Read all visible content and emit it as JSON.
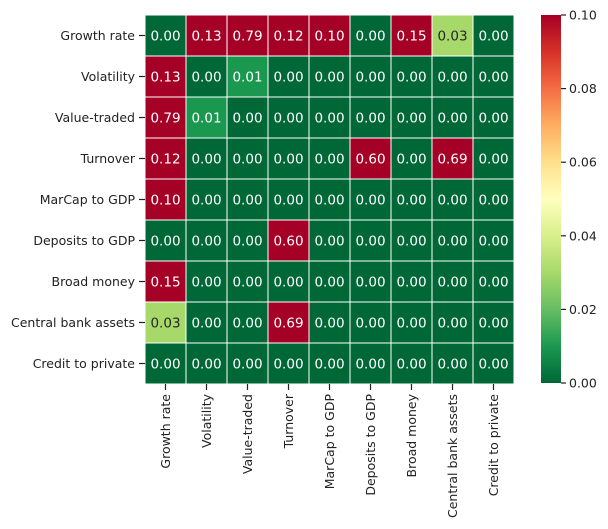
{
  "chart_data": {
    "type": "heatmap",
    "title": "",
    "xlabel": "",
    "ylabel": "",
    "rows": [
      "Growth rate",
      "Volatility",
      "Value-traded",
      "Turnover",
      "MarCap to GDP",
      "Deposits to GDP",
      "Broad money",
      "Central bank assets",
      "Credit to private"
    ],
    "columns": [
      "Growth rate",
      "Volatility",
      "Value-traded",
      "Turnover",
      "MarCap to GDP",
      "Deposits to GDP",
      "Broad money",
      "Central bank assets",
      "Credit to private"
    ],
    "values": [
      [
        0.0,
        0.13,
        0.79,
        0.12,
        0.1,
        0.0,
        0.15,
        0.03,
        0.0
      ],
      [
        0.13,
        0.0,
        0.01,
        0.0,
        0.0,
        0.0,
        0.0,
        0.0,
        0.0
      ],
      [
        0.79,
        0.01,
        0.0,
        0.0,
        0.0,
        0.0,
        0.0,
        0.0,
        0.0
      ],
      [
        0.12,
        0.0,
        0.0,
        0.0,
        0.0,
        0.6,
        0.0,
        0.69,
        0.0
      ],
      [
        0.1,
        0.0,
        0.0,
        0.0,
        0.0,
        0.0,
        0.0,
        0.0,
        0.0
      ],
      [
        0.0,
        0.0,
        0.0,
        0.6,
        0.0,
        0.0,
        0.0,
        0.0,
        0.0
      ],
      [
        0.15,
        0.0,
        0.0,
        0.0,
        0.0,
        0.0,
        0.0,
        0.0,
        0.0
      ],
      [
        0.03,
        0.0,
        0.0,
        0.69,
        0.0,
        0.0,
        0.0,
        0.0,
        0.0
      ],
      [
        0.0,
        0.0,
        0.0,
        0.0,
        0.0,
        0.0,
        0.0,
        0.0,
        0.0
      ]
    ],
    "value_labels": [
      [
        "0.00",
        "0.13",
        "0.79",
        "0.12",
        "0.10",
        "0.00",
        "0.15",
        "0.03",
        "0.00"
      ],
      [
        "0.13",
        "0.00",
        "0.01",
        "0.00",
        "0.00",
        "0.00",
        "0.00",
        "0.00",
        "0.00"
      ],
      [
        "0.79",
        "0.01",
        "0.00",
        "0.00",
        "0.00",
        "0.00",
        "0.00",
        "0.00",
        "0.00"
      ],
      [
        "0.12",
        "0.00",
        "0.00",
        "0.00",
        "0.00",
        "0.60",
        "0.00",
        "0.69",
        "0.00"
      ],
      [
        "0.10",
        "0.00",
        "0.00",
        "0.00",
        "0.00",
        "0.00",
        "0.00",
        "0.00",
        "0.00"
      ],
      [
        "0.00",
        "0.00",
        "0.00",
        "0.60",
        "0.00",
        "0.00",
        "0.00",
        "0.00",
        "0.00"
      ],
      [
        "0.15",
        "0.00",
        "0.00",
        "0.00",
        "0.00",
        "0.00",
        "0.00",
        "0.00",
        "0.00"
      ],
      [
        "0.03",
        "0.00",
        "0.00",
        "0.69",
        "0.00",
        "0.00",
        "0.00",
        "0.00",
        "0.00"
      ],
      [
        "0.00",
        "0.00",
        "0.00",
        "0.00",
        "0.00",
        "0.00",
        "0.00",
        "0.00",
        "0.00"
      ]
    ],
    "colormap": "RdYlGn_r",
    "colorbar": {
      "vmin": 0.0,
      "vmax": 0.1,
      "ticks": [
        "0.00",
        "0.02",
        "0.04",
        "0.06",
        "0.08",
        "0.10"
      ],
      "tick_values": [
        0.0,
        0.02,
        0.04,
        0.06,
        0.08,
        0.1
      ]
    },
    "grid": false,
    "cell_border_color": "#ffffff",
    "annotation_colors": {
      "on_dark": "#ffffff",
      "on_light": "#262626"
    }
  }
}
